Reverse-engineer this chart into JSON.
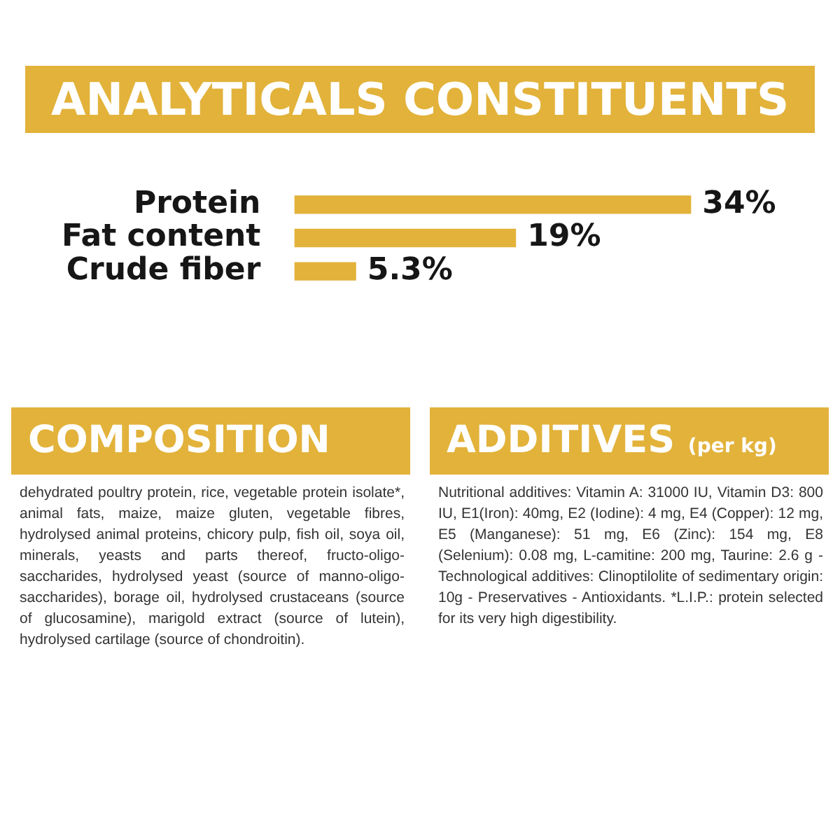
{
  "chart_data": {
    "type": "bar",
    "orientation": "horizontal",
    "title": "ANALYTICALS CONSTITUENTS",
    "categories": [
      "Protein",
      "Fat content",
      "Crude fiber"
    ],
    "values": [
      34,
      19,
      5.3
    ],
    "value_labels": [
      "34%",
      "19%",
      "5.3%"
    ],
    "color": "#e2b23a",
    "legend": false,
    "annotations": [
      "COMPOSITION",
      "dehydrated poultry protein, rice, vegetable protein isolate*, animal fats, maize, maize gluten, vegetable fibres, hydrolysed animal proteins, chicory pulp, fish oil, soya oil, minerals, yeasts and parts thereof, fructo-oligo-saccharides, hydrolysed yeast (source of manno-oligo-saccharides), borage oil, hydrolysed crustaceans (source of glucosamine), marigold extract (source of lutein), hydrolysed cartilage (source of chondroitin).",
      "ADDITIVES",
      "(per kg)",
      "Nutritional additives: Vitamin A: 31000 IU, Vitamin D3: 800 IU, E1(Iron): 40mg, E2 (Iodine): 4 mg, E4 (Copper): 12 mg, E5 (Manganese): 51 mg, E6 (Zinc): 154 mg, E8 (Selenium): 0.08 mg, L-camitine: 200 mg, Taurine: 2.6 g - Technological additives: Clinoptilolite of sedimentary origin: 10g - Preservatives - Antioxidants. *L.I.P.: protein selected for its very high digestibility."
    ]
  }
}
